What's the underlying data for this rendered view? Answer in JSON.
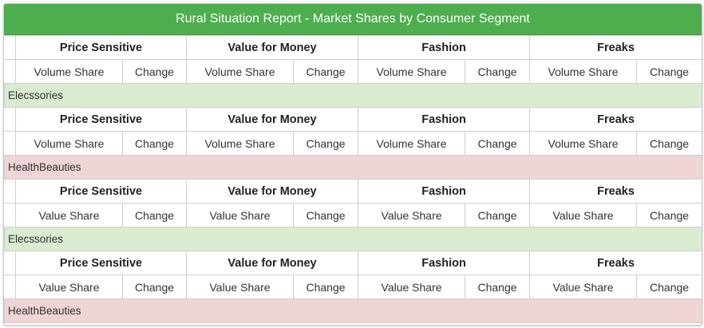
{
  "report": {
    "title": "Rural Situation Report - Market Shares by Consumer Segment",
    "segments": [
      "Price Sensitive",
      "Value for Money",
      "Fashion",
      "Freaks"
    ],
    "sections": [
      {
        "sub": {
          "share": "Volume Share",
          "change": "Change"
        },
        "category": "Elecssories",
        "category_color": "#d9ecd0"
      },
      {
        "sub": {
          "share": "Volume Share",
          "change": "Change"
        },
        "category": "HealthBeauties",
        "category_color": "#efd5d5"
      },
      {
        "sub": {
          "share": "Value Share",
          "change": "Change"
        },
        "category": "Elecssories",
        "category_color": "#d9ecd0"
      },
      {
        "sub": {
          "share": "Value Share",
          "change": "Change"
        },
        "category": "HealthBeauties",
        "category_color": "#efd5d5"
      }
    ]
  },
  "colors": {
    "header_bg": "#4cae4c",
    "header_text": "#ffffff"
  }
}
